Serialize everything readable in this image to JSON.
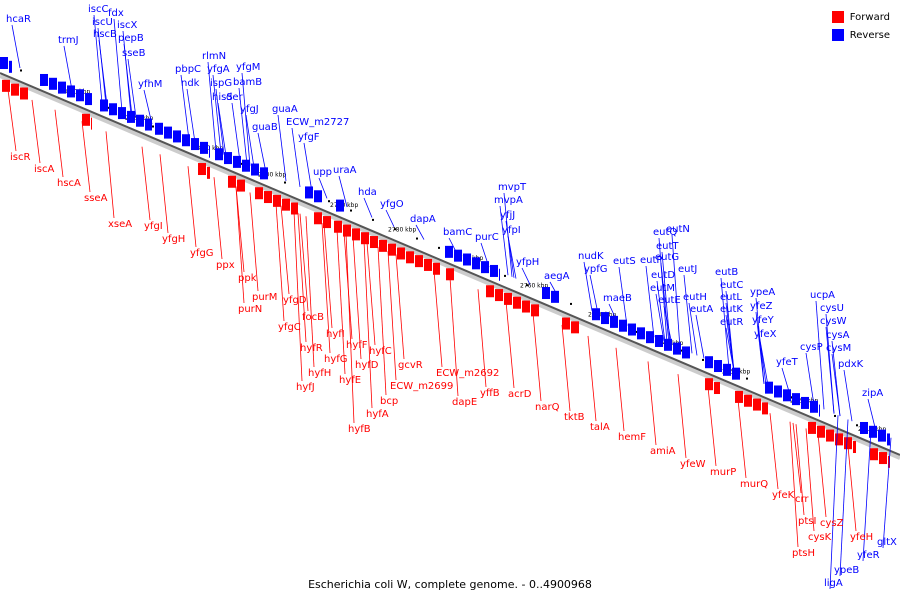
{
  "caption": "Escherichia coli W, complete genome. - 0..4900968",
  "legend": [
    {
      "label": "Forward",
      "color": "#ff0000"
    },
    {
      "label": "Reverse",
      "color": "#0000ff"
    }
  ],
  "colors": {
    "forward": "#ff0000",
    "reverse": "#0000ff",
    "axis": "#555555"
  },
  "scale_labels": [
    "2830 kbp",
    "2820 kbp",
    "2810 kbp",
    "2800 kbp",
    "2790 kbp",
    "2780 kbp",
    "2770 kbp",
    "2760 kbp",
    "2750 kbp",
    "2740 kbp",
    "2730 kbp",
    "2720 kbp",
    "2710 kbp"
  ],
  "reverse_genes": [
    "hcaR",
    "trmJ",
    "iscC",
    "iscU",
    "hscB",
    "fdx",
    "iscX",
    "pepB",
    "sseB",
    "yfhM",
    "pbpC",
    "ndk",
    "rlmN",
    "yfgA",
    "ispG",
    "yfgM",
    "bamB",
    "hisS",
    "der",
    "yfgJ",
    "guaB",
    "guaA",
    "ECW_m2727",
    "yfgF",
    "upp",
    "uraA",
    "hda",
    "yfgO",
    "dapA",
    "bamC",
    "purC",
    "mvpT",
    "mvpA",
    "yfjJ",
    "yfpI",
    "yfpH",
    "aegA",
    "nudK",
    "ypfG",
    "maeB",
    "eutS",
    "eutP",
    "eutQ",
    "eutT",
    "eutN",
    "eutD",
    "eutM",
    "eutG",
    "eutE",
    "eutH",
    "eutJ",
    "eutA",
    "eutB",
    "eutC",
    "eutL",
    "eutK",
    "eutR",
    "ypeA",
    "yfeZ",
    "yfeY",
    "yfeX",
    "yfeT",
    "cysP",
    "ucpA",
    "cysU",
    "cysW",
    "cysA",
    "cysM",
    "pdxK",
    "zipA",
    "ypeB",
    "ligA",
    "yfeR",
    "gltX"
  ],
  "forward_genes": [
    "iscR",
    "iscA",
    "hscA",
    "sseA",
    "xseA",
    "yfgI",
    "yfgH",
    "yfgG",
    "ppx",
    "ppk",
    "purM",
    "purN",
    "yfgD",
    "yfgC",
    "focB",
    "hyfR",
    "hyfI",
    "hyfG",
    "hyfH",
    "hyfJ",
    "hyfF",
    "hyfE",
    "hyfD",
    "hyfC",
    "hyfA",
    "hyfB",
    "bcp",
    "gcvR",
    "ECW_m2699",
    "ECW_m2692",
    "dapE",
    "yffB",
    "acrD",
    "narQ",
    "tktB",
    "talA",
    "hemF",
    "amiA",
    "yfeW",
    "murP",
    "murQ",
    "yfeK",
    "crr",
    "ptsI",
    "cysK",
    "cysZ",
    "ptsH",
    "yfeH"
  ]
}
